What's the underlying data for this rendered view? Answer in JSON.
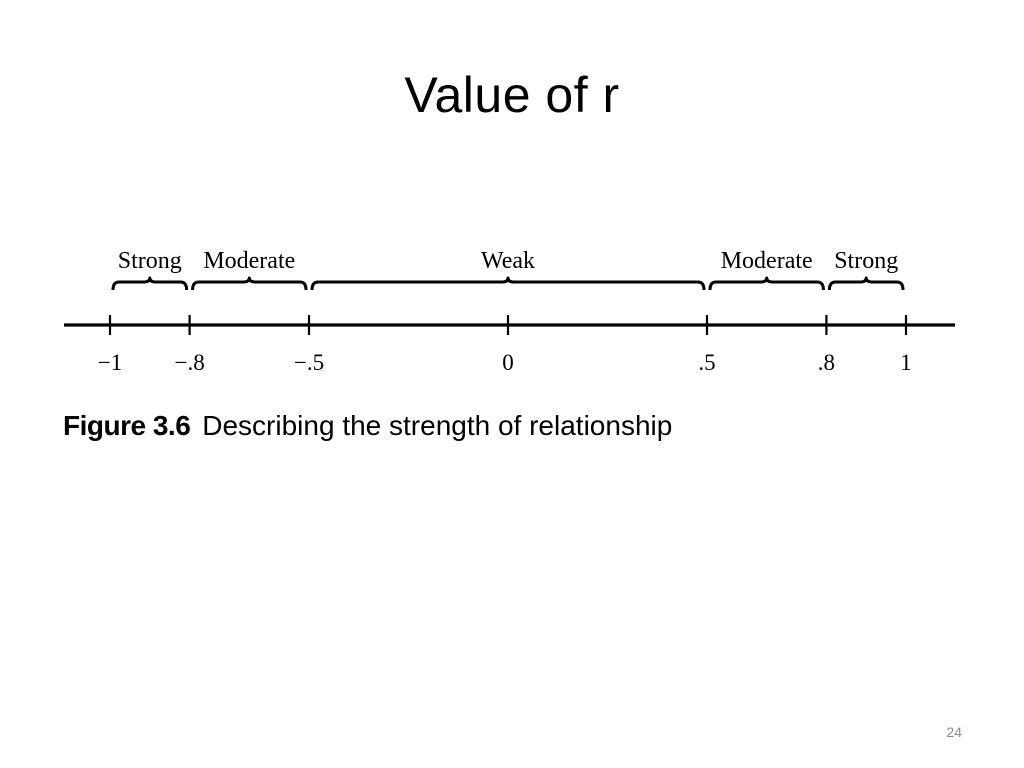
{
  "slide": {
    "title": "Value of r",
    "page_number": "24"
  },
  "figure": {
    "caption_label": "Figure 3.6",
    "caption_text": "Describing the strength of relationship",
    "axis_min": -1,
    "axis_max": 1,
    "ticks": [
      {
        "value": -1,
        "label": "−1"
      },
      {
        "value": -0.8,
        "label": "−.8"
      },
      {
        "value": -0.5,
        "label": "−.5"
      },
      {
        "value": 0,
        "label": "0"
      },
      {
        "value": 0.5,
        "label": ".5"
      },
      {
        "value": 0.8,
        "label": ".8"
      },
      {
        "value": 1,
        "label": "1"
      }
    ],
    "ranges": [
      {
        "from": -1,
        "to": -0.8,
        "label": "Strong"
      },
      {
        "from": -0.8,
        "to": -0.5,
        "label": "Moderate"
      },
      {
        "from": -0.5,
        "to": 0.5,
        "label": "Weak"
      },
      {
        "from": 0.5,
        "to": 0.8,
        "label": "Moderate"
      },
      {
        "from": 0.8,
        "to": 1,
        "label": "Strong"
      }
    ]
  }
}
